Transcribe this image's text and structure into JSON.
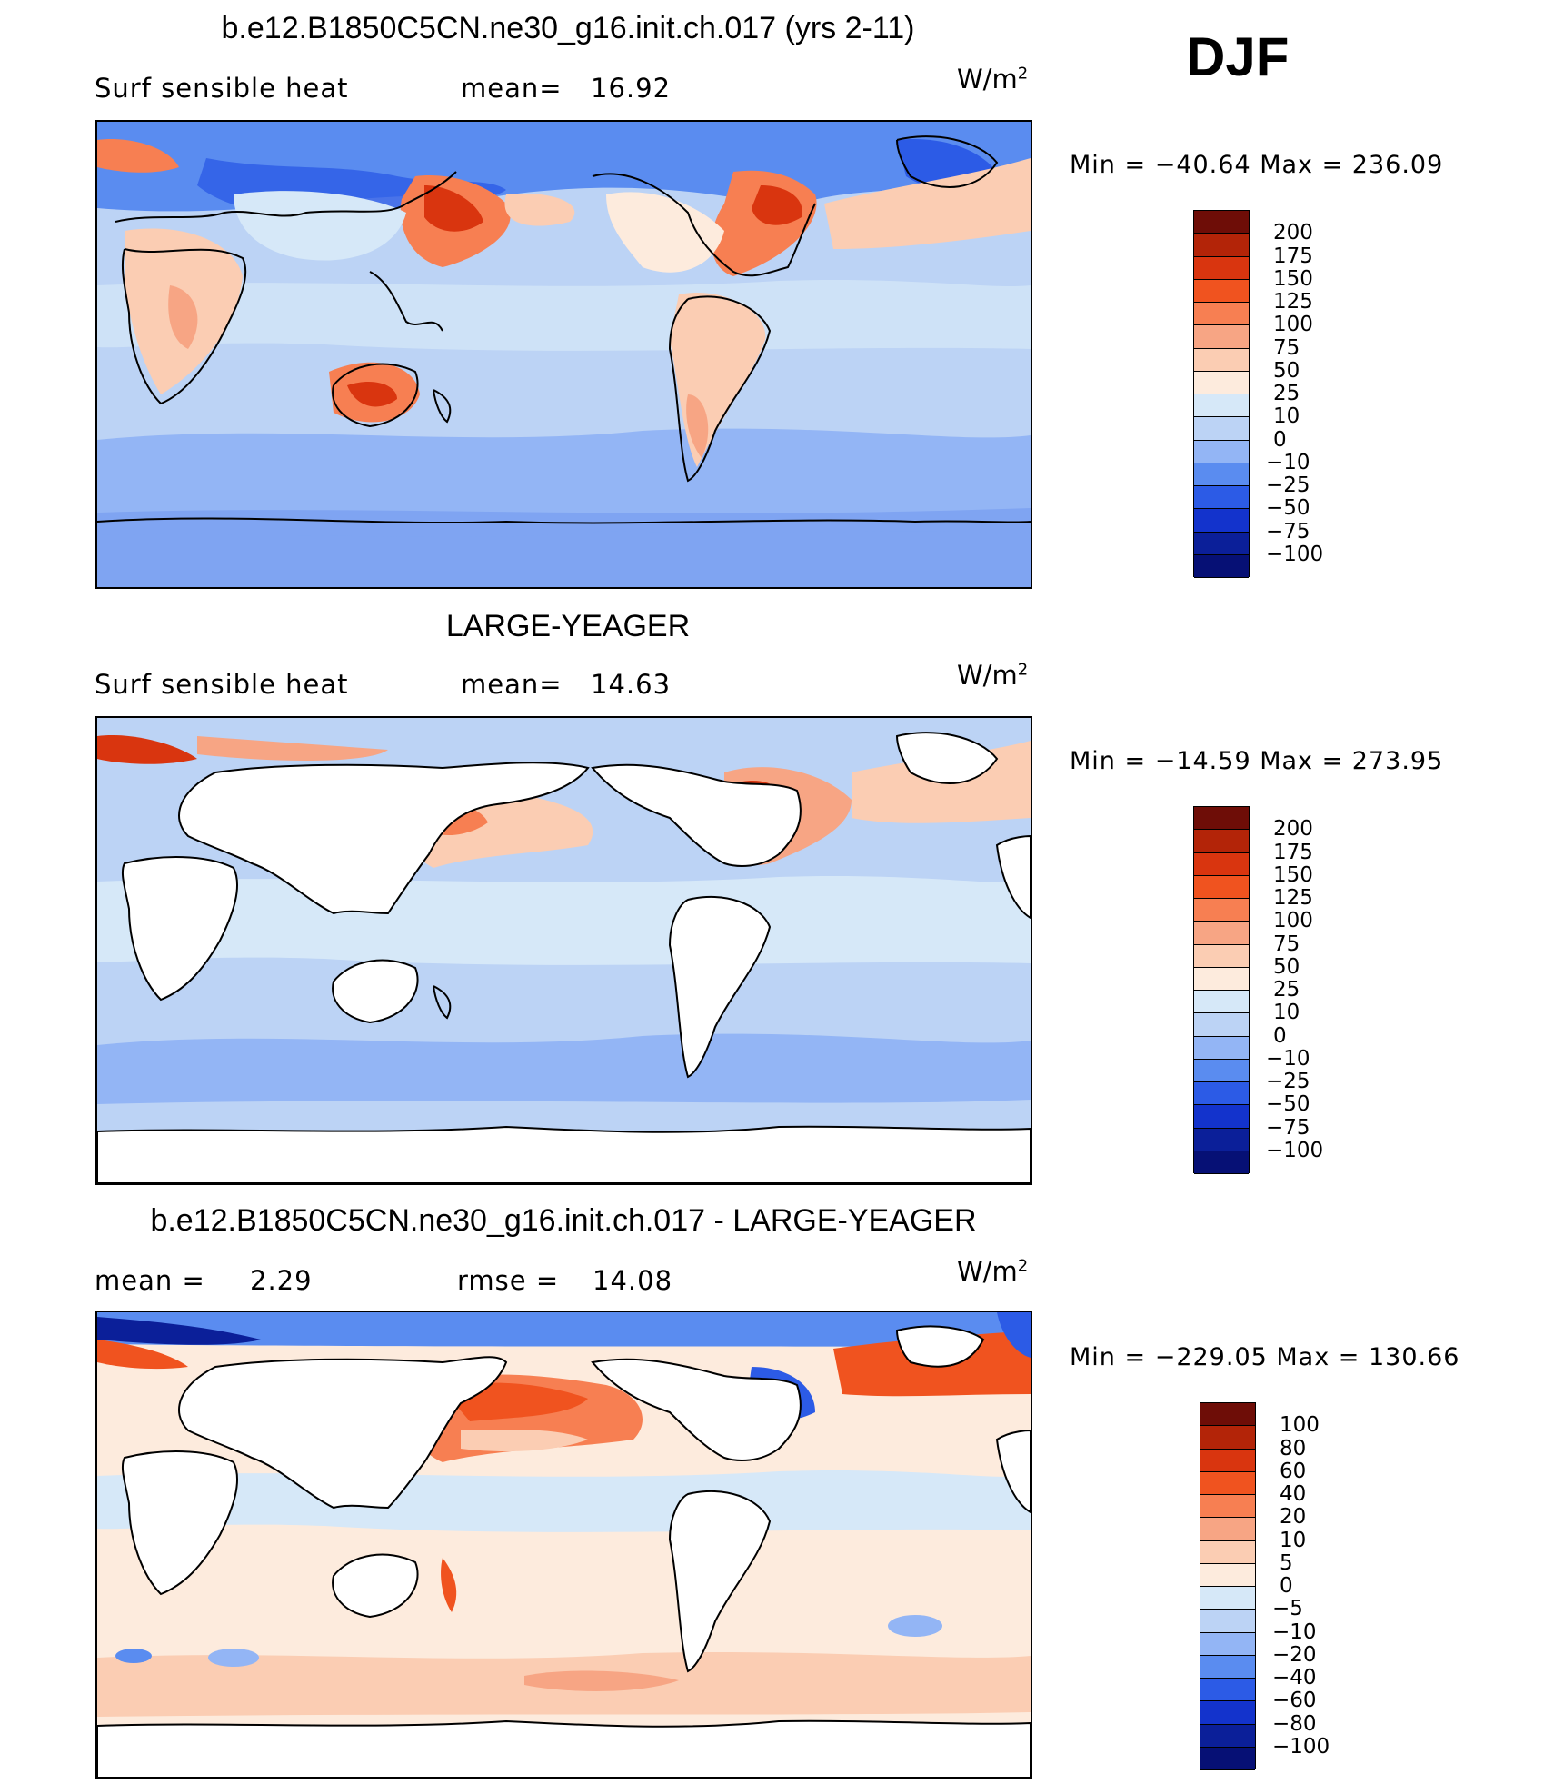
{
  "season": "DJF",
  "panels": [
    {
      "title": "b.e12.B1850C5CN.ne30_g16.init.ch.017 (yrs 2-11)",
      "left_text": "Surf  sensible  heat",
      "stat_label": "mean=",
      "stat_value": "16.92",
      "units": "W/m",
      "units_sup": "2",
      "min_max": "Min  =  −40.64  Max  =  236.09",
      "colorbar": {
        "labels": [
          "200",
          "175",
          "150",
          "125",
          "100",
          "75",
          "50",
          "25",
          "10",
          "0",
          "−10",
          "−25",
          "−50",
          "−75",
          "−100"
        ],
        "colors": [
          "#6e0d07",
          "#b32408",
          "#d9350f",
          "#f0531f",
          "#f77f52",
          "#f7a584",
          "#fbcdb3",
          "#fdebdd",
          "#d6e8f8",
          "#bcd3f5",
          "#93b5f5",
          "#5a8cf0",
          "#2c5be6",
          "#1333cc",
          "#0b1f99",
          "#061075"
        ]
      }
    },
    {
      "title": "LARGE-YEAGER",
      "left_text": "Surf  sensible  heat",
      "stat_label": "mean=",
      "stat_value": "14.63",
      "units": "W/m",
      "units_sup": "2",
      "min_max": "Min  =  −14.59  Max  =  273.95",
      "colorbar": {
        "labels": [
          "200",
          "175",
          "150",
          "125",
          "100",
          "75",
          "50",
          "25",
          "10",
          "0",
          "−10",
          "−25",
          "−50",
          "−75",
          "−100"
        ],
        "colors": [
          "#6e0d07",
          "#b32408",
          "#d9350f",
          "#f0531f",
          "#f77f52",
          "#f7a584",
          "#fbcdb3",
          "#fdebdd",
          "#d6e8f8",
          "#bcd3f5",
          "#93b5f5",
          "#5a8cf0",
          "#2c5be6",
          "#1333cc",
          "#0b1f99",
          "#061075"
        ]
      }
    },
    {
      "title": "b.e12.B1850C5CN.ne30_g16.init.ch.017 - LARGE-YEAGER",
      "left_text": "mean  =",
      "left_value": "2.29",
      "stat_label": "rmse  =",
      "stat_value": "14.08",
      "units": "W/m",
      "units_sup": "2",
      "min_max": "Min  =  −229.05  Max  =  130.66",
      "colorbar": {
        "labels": [
          "100",
          "80",
          "60",
          "40",
          "20",
          "10",
          "5",
          "0",
          "−5",
          "−10",
          "−20",
          "−40",
          "−60",
          "−80",
          "−100"
        ],
        "colors": [
          "#6e0d07",
          "#b32408",
          "#d9350f",
          "#f0531f",
          "#f77f52",
          "#f7a584",
          "#fbcdb3",
          "#fdebdd",
          "#d6e8f8",
          "#bcd3f5",
          "#93b5f5",
          "#5a8cf0",
          "#2c5be6",
          "#1333cc",
          "#0b1f99",
          "#061075"
        ]
      }
    }
  ]
}
